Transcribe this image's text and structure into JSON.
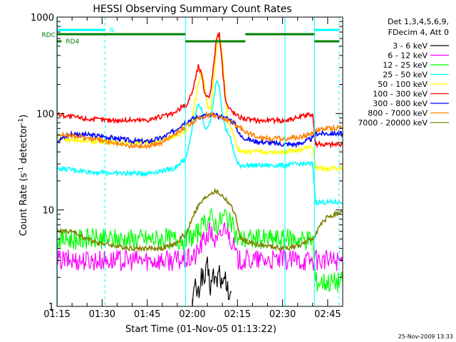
{
  "chart_data": {
    "type": "line",
    "title": "HESSI Observing Summary Count Rates",
    "xlabel": "Start Time (01-Nov-05 01:13:22)",
    "ylabel": "Count Rate (s⁻¹ detector⁻¹)",
    "ylabel_parts": {
      "main": "Count Rate (s",
      "sup1": "-1",
      "mid": " detector",
      "sup2": "-1",
      "end": ")"
    },
    "yscale": "log",
    "ylim": [
      1,
      1000
    ],
    "xlim_min": [
      75,
      170
    ],
    "x_unit": "minutes after 00:00 UT",
    "x_ticks": [
      {
        "min": 75,
        "label": "01:15"
      },
      {
        "min": 90,
        "label": "01:30"
      },
      {
        "min": 105,
        "label": "01:45"
      },
      {
        "min": 120,
        "label": "02:00"
      },
      {
        "min": 135,
        "label": "02:15"
      },
      {
        "min": 150,
        "label": "02:30"
      },
      {
        "min": 165,
        "label": "02:45"
      }
    ],
    "y_ticks": [
      {
        "value": 1,
        "label": "1"
      },
      {
        "value": 10,
        "label": "10"
      },
      {
        "value": 100,
        "label": "100"
      },
      {
        "value": 1000,
        "label": "1000"
      }
    ],
    "legend": {
      "position": "right",
      "header": [
        "Det 1,3,4,5,6,9,",
        "FDecim 4, Att 0"
      ]
    },
    "series": [
      {
        "name": "3 - 6 keV",
        "color": "#000000",
        "x": [
          120,
          121,
          122,
          123,
          124,
          125,
          126,
          127,
          128,
          129,
          130,
          131,
          132,
          133
        ],
        "y": [
          1.2,
          1.6,
          1.3,
          2.2,
          1.8,
          2.6,
          1.6,
          2.1,
          1.8,
          2.4,
          1.5,
          1.9,
          1.3,
          1.4
        ]
      },
      {
        "name": "6 - 12 keV",
        "color": "#ff00ff",
        "x": [
          75,
          85,
          95,
          105,
          115,
          118,
          121,
          124,
          126,
          128,
          129,
          131,
          133,
          135,
          145,
          155,
          165,
          170
        ],
        "y": [
          3,
          3,
          3,
          3,
          3,
          3,
          3.3,
          5,
          6,
          4.5,
          5,
          7,
          5,
          3,
          3,
          3,
          3,
          3
        ]
      },
      {
        "name": "12 - 25 keV",
        "color": "#00ff00",
        "x": [
          75,
          85,
          95,
          105,
          117,
          118,
          121,
          124,
          126,
          128,
          129,
          131,
          133,
          135,
          140,
          150,
          160,
          161,
          170
        ],
        "y": [
          5,
          5,
          5,
          5,
          5,
          5,
          5.5,
          7,
          8.5,
          7,
          7.5,
          9,
          7,
          5,
          5,
          5,
          5,
          1.8,
          1.8
        ]
      },
      {
        "name": "25 - 50 keV",
        "color": "#00ffff",
        "x": [
          75,
          85,
          95,
          105,
          114,
          117,
          118,
          120,
          122,
          123,
          124,
          125,
          126,
          127,
          128,
          129,
          130,
          131,
          132,
          133,
          134,
          135,
          136,
          140,
          150,
          155,
          160,
          161,
          170
        ],
        "y": [
          27,
          25,
          24,
          24,
          27,
          33,
          34,
          70,
          130,
          110,
          75,
          68,
          85,
          130,
          225,
          195,
          100,
          70,
          62,
          50,
          38,
          30,
          29,
          29,
          29,
          30,
          30,
          12,
          12
        ]
      },
      {
        "name": "50 - 100 keV",
        "color": "#ffff00",
        "x": [
          75,
          85,
          95,
          105,
          114,
          117,
          118,
          120,
          122,
          123,
          124,
          125,
          126,
          127,
          128,
          129,
          130,
          131,
          132,
          133,
          134,
          135,
          136,
          140,
          150,
          155,
          160,
          161,
          170
        ],
        "y": [
          55,
          52,
          50,
          50,
          56,
          65,
          65,
          90,
          200,
          270,
          200,
          120,
          110,
          200,
          450,
          640,
          400,
          150,
          80,
          70,
          60,
          42,
          41,
          40,
          40,
          42,
          45,
          27,
          27
        ]
      },
      {
        "name": "100 - 300 keV",
        "color": "#ff0000",
        "x": [
          75,
          85,
          95,
          105,
          114,
          117,
          118,
          120,
          122,
          123,
          124,
          125,
          126,
          127,
          128,
          129,
          130,
          131,
          132,
          133,
          134,
          135,
          136,
          140,
          150,
          155,
          160,
          161,
          170
        ],
        "y": [
          98,
          88,
          85,
          86,
          100,
          120,
          120,
          170,
          310,
          260,
          170,
          150,
          160,
          300,
          600,
          660,
          300,
          140,
          115,
          108,
          100,
          95,
          92,
          85,
          85,
          90,
          100,
          48,
          48
        ]
      },
      {
        "name": "300 - 800 keV",
        "color": "#0000ff",
        "x": [
          75,
          80,
          85,
          90,
          95,
          100,
          105,
          110,
          114,
          117,
          118,
          120,
          122,
          124,
          126,
          128,
          130,
          132,
          134,
          135,
          136,
          140,
          145,
          150,
          155,
          160,
          161,
          165,
          170
        ],
        "y": [
          52,
          62,
          60,
          58,
          55,
          52,
          51,
          56,
          66,
          80,
          82,
          88,
          92,
          95,
          95,
          95,
          92,
          88,
          80,
          68,
          58,
          52,
          50,
          48,
          48,
          55,
          62,
          62,
          62
        ]
      },
      {
        "name": "800 - 7000 keV",
        "color": "#ff8000",
        "x": [
          75,
          80,
          85,
          90,
          95,
          100,
          105,
          110,
          114,
          117,
          118,
          120,
          122,
          124,
          126,
          128,
          130,
          132,
          134,
          136,
          140,
          145,
          150,
          155,
          160,
          161,
          165,
          170
        ],
        "y": [
          62,
          58,
          56,
          52,
          48,
          46,
          46,
          50,
          62,
          70,
          74,
          80,
          88,
          94,
          98,
          95,
          90,
          85,
          78,
          70,
          60,
          55,
          55,
          56,
          62,
          68,
          70,
          72
        ]
      },
      {
        "name": "7000 - 20000 keV",
        "color": "#808000",
        "x": [
          75,
          80,
          85,
          90,
          95,
          100,
          105,
          110,
          115,
          117,
          118,
          120,
          122,
          124,
          126,
          128,
          130,
          132,
          134,
          135,
          136,
          140,
          145,
          150,
          155,
          160,
          162,
          165,
          170
        ],
        "y": [
          6,
          6,
          5,
          4.5,
          4.2,
          4,
          4,
          4,
          4.5,
          5.5,
          5.5,
          8.5,
          11,
          13,
          15,
          15.5,
          14,
          12,
          9.5,
          7,
          5,
          4.5,
          4.2,
          4,
          4.2,
          5,
          6.5,
          8.5,
          9.5
        ]
      }
    ],
    "vlines": [
      {
        "min": 75.1,
        "style": "solid"
      },
      {
        "min": 91,
        "style": "dashed"
      },
      {
        "min": 117.7,
        "style": "solid"
      },
      {
        "min": 150.8,
        "style": "solid"
      },
      {
        "min": 160.6,
        "style": "solid"
      },
      {
        "min": 168.8,
        "style": "dashed"
      }
    ],
    "flag_bars": [
      {
        "name": "N",
        "color": "#00ffff",
        "level": 1,
        "segments": [
          [
            75,
            91
          ],
          [
            160.6,
            168.8
          ]
        ],
        "label": "N"
      },
      {
        "name": "RDC",
        "color": "#008000",
        "level": 2,
        "segments": [
          [
            75,
            117.7
          ],
          [
            137.6,
            160.6
          ]
        ],
        "label": "RDC"
      },
      {
        "name": "RD4",
        "color": "#008000",
        "level": 3,
        "segments": [
          [
            75,
            76.5
          ],
          [
            117.7,
            137.6
          ],
          [
            160.6,
            168.8
          ]
        ],
        "label": "RD4"
      }
    ]
  },
  "footer": {
    "timestamp": "25-Nov-2009 13:33"
  }
}
